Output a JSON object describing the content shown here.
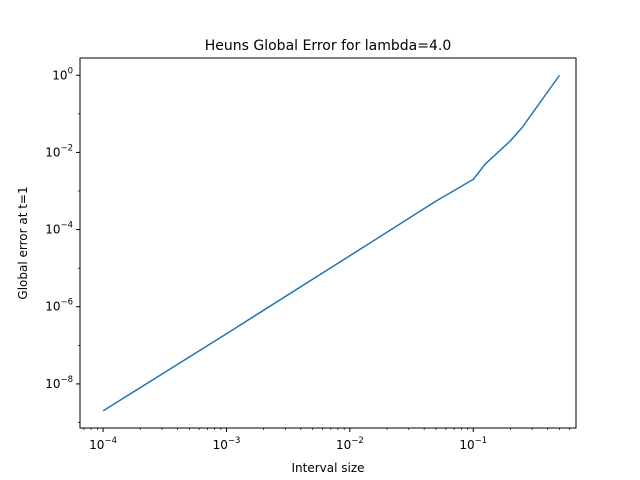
{
  "chart_data": {
    "type": "line",
    "title": "Heuns Global Error for lambda=4.0",
    "xlabel": "Interval size",
    "ylabel": "Global error at t=1",
    "xscale": "log",
    "yscale": "log",
    "xlim": [
      6.5e-05,
      0.68
    ],
    "ylim": [
      7.2e-10,
      2.8
    ],
    "xticks": [
      0.0001,
      0.001,
      0.01,
      0.1
    ],
    "xtick_labels": [
      {
        "base": "10",
        "exp": "−4"
      },
      {
        "base": "10",
        "exp": "−3"
      },
      {
        "base": "10",
        "exp": "−2"
      },
      {
        "base": "10",
        "exp": "−1"
      }
    ],
    "yticks": [
      1e-08,
      1e-06,
      0.0001,
      0.01,
      1
    ],
    "ytick_labels": [
      {
        "base": "10",
        "exp": "−8"
      },
      {
        "base": "10",
        "exp": "−6"
      },
      {
        "base": "10",
        "exp": "−4"
      },
      {
        "base": "10",
        "exp": "−2"
      },
      {
        "base": "10",
        "exp": "0"
      }
    ],
    "grid": false,
    "legend": "none",
    "series": [
      {
        "color": "#1f77b4",
        "x": [
          0.0001,
          0.001,
          0.0125,
          0.05,
          0.1,
          0.125,
          0.2,
          0.25,
          0.5
        ],
        "y": [
          2e-09,
          2e-07,
          3.3e-05,
          0.00055,
          0.002,
          0.005,
          0.02,
          0.045,
          1.0
        ]
      }
    ]
  }
}
